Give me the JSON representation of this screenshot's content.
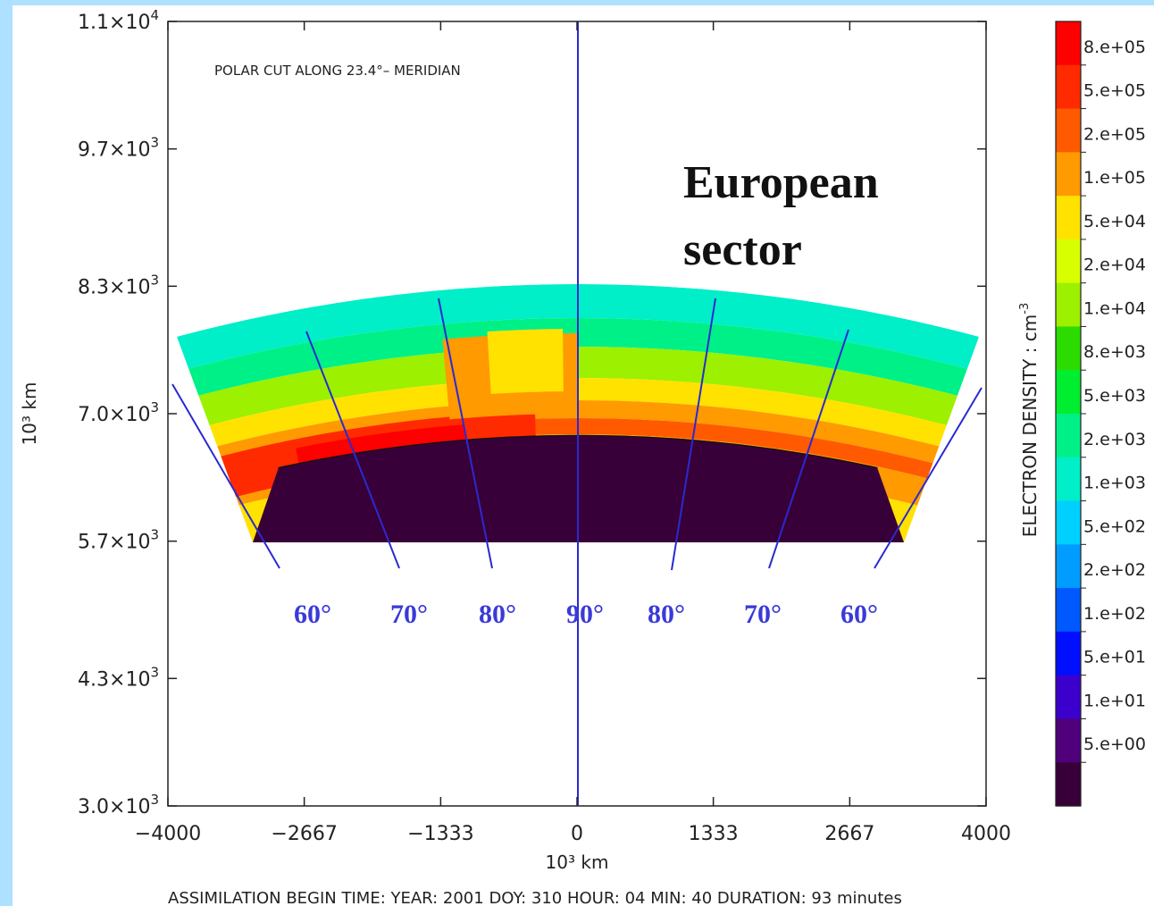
{
  "chart_data": {
    "type": "heatmap",
    "title": "POLAR CUT ALONG  23.4°– MERIDIAN",
    "xlabel": "10³ km",
    "ylabel": "10³ km",
    "x_ticks": [
      "−4000",
      "−2667",
      "−1333",
      "0",
      "1333",
      "2667",
      "4000"
    ],
    "x_tick_values": [
      -4000,
      -2667,
      -1333,
      0,
      1333,
      2667,
      4000
    ],
    "y_ticks": [
      {
        "value": 11000,
        "mantissa": "1.1×10",
        "exp": "4"
      },
      {
        "value": 9700,
        "mantissa": "9.7×10",
        "exp": "3"
      },
      {
        "value": 8300,
        "mantissa": "8.3×10",
        "exp": "3"
      },
      {
        "value": 7000,
        "mantissa": "7.0×10",
        "exp": "3"
      },
      {
        "value": 5700,
        "mantissa": "5.7×10",
        "exp": "3"
      },
      {
        "value": 4300,
        "mantissa": "4.3×10",
        "exp": "3"
      },
      {
        "value": 3000,
        "mantissa": "3.0×10",
        "exp": "3"
      }
    ],
    "xlim": [
      -4000,
      4000
    ],
    "ylim": [
      3000,
      11000
    ],
    "colorbar": {
      "label": "ELECTRON DENSITY : cm",
      "label_exp": "-3",
      "levels": [
        "8.e+05",
        "5.e+05",
        "2.e+05",
        "1.e+05",
        "5.e+04",
        "2.e+04",
        "1.e+04",
        "8.e+03",
        "5.e+03",
        "2.e+03",
        "1.e+03",
        "5.e+02",
        "2.e+02",
        "1.e+02",
        "5.e+01",
        "1.e+01",
        "5.e+00"
      ],
      "colors": [
        "#ff0000",
        "#ff2a00",
        "#ff5a00",
        "#ff9a00",
        "#ffe200",
        "#d8ff00",
        "#9cf000",
        "#2cdc00",
        "#00ee30",
        "#00f088",
        "#00eec8",
        "#00d0ff",
        "#009cff",
        "#0058ff",
        "#0010ff",
        "#3c00cc",
        "#50007a",
        "#380038"
      ]
    },
    "annotation": "European\nsector",
    "annotation_lines": [
      "European",
      "sector"
    ],
    "latitude_labels": [
      "60°",
      "70°",
      "80°",
      "90°",
      "80°",
      "70°",
      "60°"
    ],
    "footer": "ASSIMILATION BEGIN TIME: YEAR: 2001 DOY: 310 HOUR: 04 MIN: 40    DURATION: 93 minutes"
  }
}
